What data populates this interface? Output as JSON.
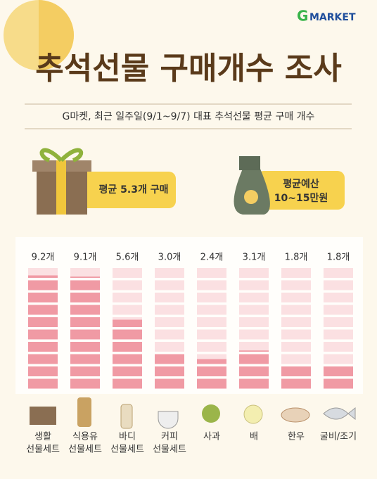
{
  "header": {
    "logo_g": "G",
    "logo_text": "MARKET",
    "title": "추석선물 구매개수 조사",
    "subtitle": "G마켓, 최근 일주일(9/1~9/7) 대표 추석선물 평균 구매 개수"
  },
  "callouts": {
    "gift": "평균 5.3개 구매",
    "budget": [
      "평균예산",
      "10~15만원"
    ]
  },
  "chart_data": {
    "type": "bar",
    "categories": [
      [
        "생활",
        "선물세트"
      ],
      [
        "식용유",
        "선물세트"
      ],
      [
        "바디",
        "선물세트"
      ],
      [
        "커피",
        "선물세트"
      ],
      [
        "사과"
      ],
      [
        "배"
      ],
      [
        "한우"
      ],
      [
        "굴비/조기"
      ]
    ],
    "values": [
      9.2,
      9.1,
      5.6,
      3.0,
      2.4,
      3.1,
      1.8,
      1.8
    ],
    "value_labels": [
      "9.2개",
      "9.1개",
      "5.6개",
      "3.0개",
      "2.4개",
      "3.1개",
      "1.8개",
      "1.8개"
    ],
    "color": "#f09aa4",
    "ylim": [
      0,
      10
    ]
  }
}
